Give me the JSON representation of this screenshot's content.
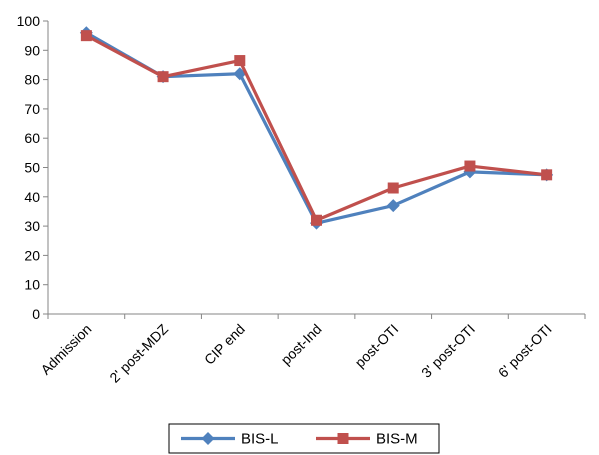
{
  "chart_data": {
    "type": "line",
    "categories": [
      "Admission",
      "2' post-MDZ",
      "CIP end",
      "post-Ind",
      "post-OTI",
      "3' post-OTI",
      "6' post-OTI"
    ],
    "series": [
      {
        "name": "BIS-L",
        "values": [
          96,
          81,
          82,
          31,
          37,
          48.5,
          47.5
        ],
        "color": "#4F81BD",
        "marker": "diamond"
      },
      {
        "name": "BIS-M",
        "values": [
          95,
          81,
          86.5,
          32,
          43,
          50.5,
          47.5
        ],
        "color": "#C0504D",
        "marker": "square"
      }
    ],
    "yticks": [
      "0",
      "10",
      "20",
      "30",
      "40",
      "50",
      "60",
      "70",
      "80",
      "90",
      "100"
    ],
    "ylim": [
      0,
      100
    ],
    "grid": false,
    "legend_position": "bottom"
  }
}
